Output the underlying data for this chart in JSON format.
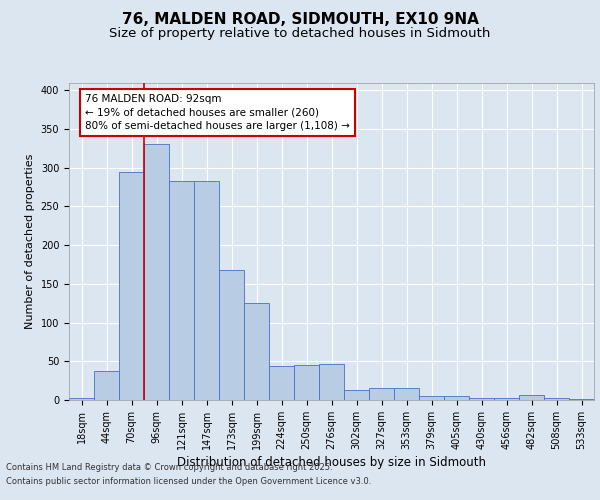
{
  "title_line1": "76, MALDEN ROAD, SIDMOUTH, EX10 9NA",
  "title_line2": "Size of property relative to detached houses in Sidmouth",
  "xlabel": "Distribution of detached houses by size in Sidmouth",
  "ylabel": "Number of detached properties",
  "categories": [
    "18sqm",
    "44sqm",
    "70sqm",
    "96sqm",
    "121sqm",
    "147sqm",
    "173sqm",
    "199sqm",
    "224sqm",
    "250sqm",
    "276sqm",
    "302sqm",
    "327sqm",
    "353sqm",
    "379sqm",
    "405sqm",
    "430sqm",
    "456sqm",
    "482sqm",
    "508sqm",
    "533sqm"
  ],
  "values": [
    2,
    38,
    295,
    330,
    283,
    283,
    168,
    125,
    44,
    45,
    46,
    13,
    15,
    15,
    5,
    5,
    2,
    2,
    6,
    3,
    1
  ],
  "bar_color": "#b8cce4",
  "bar_edge_color": "#4472c4",
  "vline_color": "#cc0000",
  "vline_x_index": 2.5,
  "annotation_text": "76 MALDEN ROAD: 92sqm\n← 19% of detached houses are smaller (260)\n80% of semi-detached houses are larger (1,108) →",
  "annotation_box_facecolor": "#ffffff",
  "annotation_box_edgecolor": "#cc0000",
  "ylim": [
    0,
    410
  ],
  "yticks": [
    0,
    50,
    100,
    150,
    200,
    250,
    300,
    350,
    400
  ],
  "background_color": "#dce6f1",
  "plot_bg_color": "#dce6f1",
  "grid_color": "#ffffff",
  "footer_line1": "Contains HM Land Registry data © Crown copyright and database right 2025.",
  "footer_line2": "Contains public sector information licensed under the Open Government Licence v3.0.",
  "title_fontsize": 11,
  "subtitle_fontsize": 9.5,
  "tick_fontsize": 7,
  "label_fontsize": 8.5,
  "ylabel_fontsize": 8,
  "annotation_fontsize": 7.5,
  "footer_fontsize": 6
}
